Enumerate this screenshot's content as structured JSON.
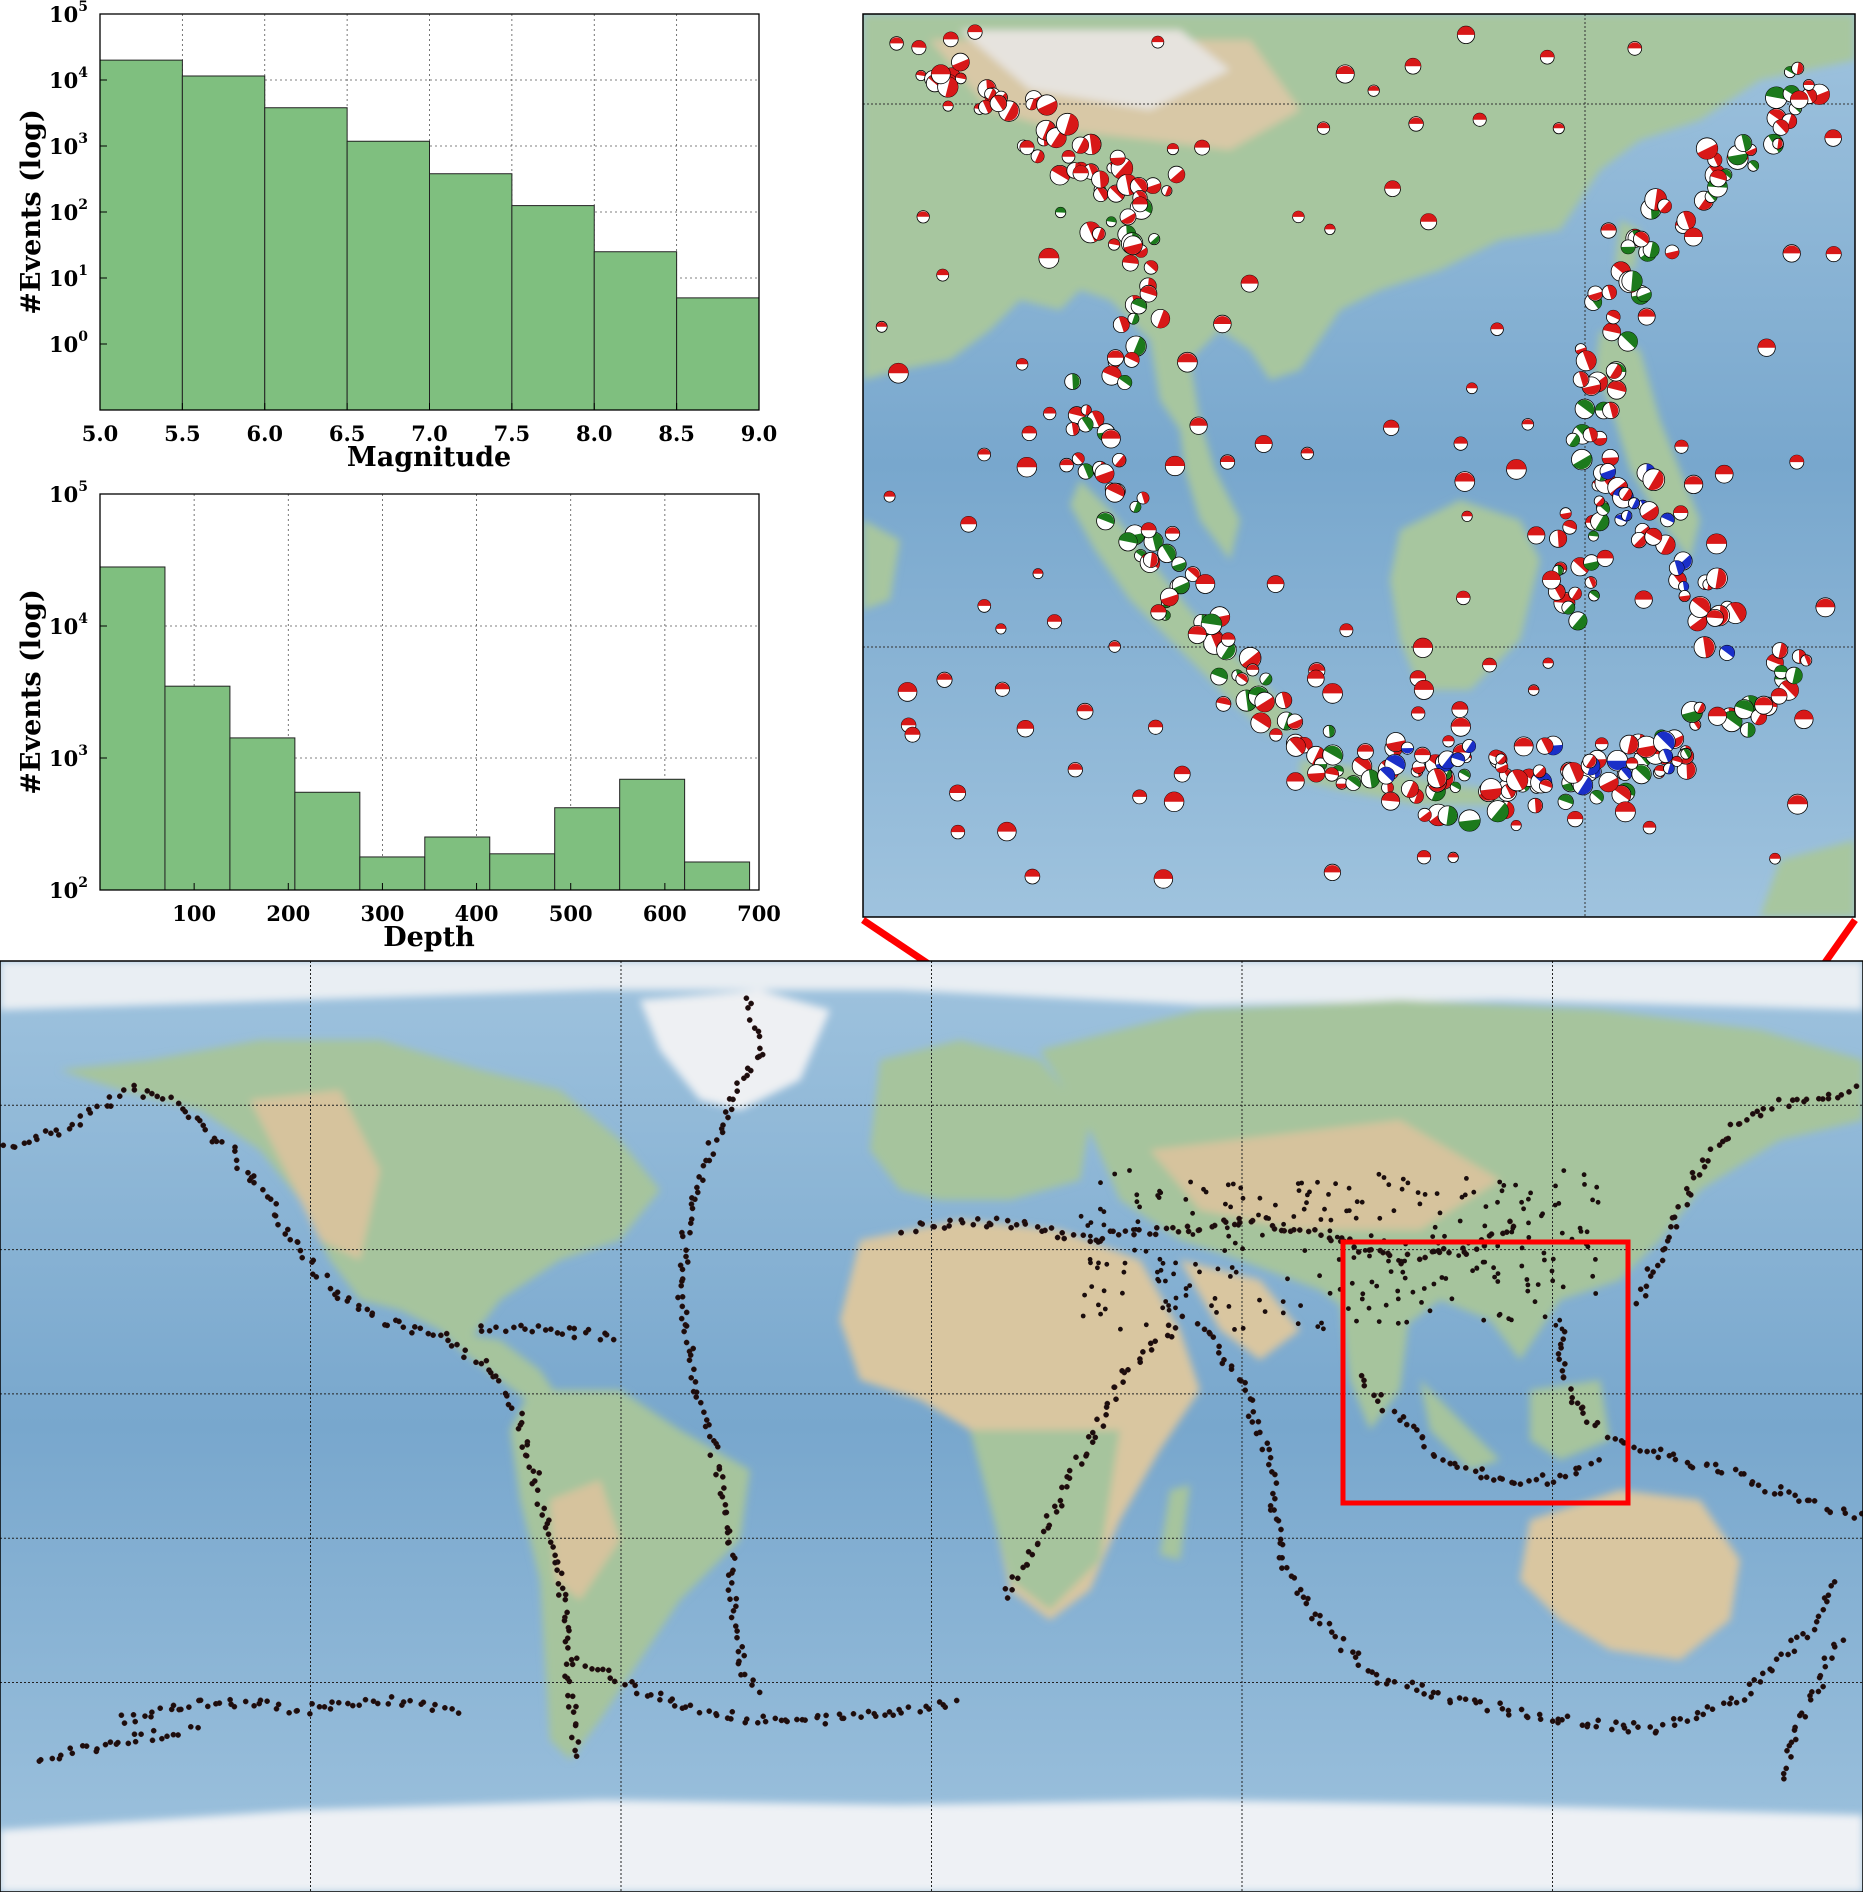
{
  "colors": {
    "bar_fill": "#7fbf7f",
    "bar_edge": "#222222",
    "ocean": "#7aa9cf",
    "ocean_light": "#bcd6ea",
    "land": "#9cc39a",
    "land_dry": "#d9c7a2",
    "ice": "#eef2f6",
    "event_dot": "#1a0d0d",
    "highlight": "#ff0000",
    "focal_red": "#d81818",
    "focal_green": "#1c7a1c",
    "focal_blue": "#1a2fc8"
  },
  "chart_data": [
    {
      "type": "bar",
      "xlabel": "Magnitude",
      "ylabel": "#Events (log)",
      "xlim": [
        5.0,
        9.0
      ],
      "ylim": [
        0.1,
        100000
      ],
      "log_y": true,
      "grid": true,
      "bin_edges": [
        5.0,
        5.5,
        6.0,
        6.5,
        7.0,
        7.5,
        8.0,
        8.5,
        9.0
      ],
      "values": [
        20000,
        11500,
        3800,
        1180,
        380,
        125,
        25,
        5
      ],
      "x_ticks": [
        "5.0",
        "5.5",
        "6.0",
        "6.5",
        "7.0",
        "7.5",
        "8.0",
        "8.5",
        "9.0"
      ],
      "x_tick_values": [
        5.0,
        5.5,
        6.0,
        6.5,
        7.0,
        7.5,
        8.0,
        8.5,
        9.0
      ],
      "y_ticks": [
        {
          "value": 1,
          "base": "10",
          "exp": "0"
        },
        {
          "value": 10,
          "base": "10",
          "exp": "1"
        },
        {
          "value": 100,
          "base": "10",
          "exp": "2"
        },
        {
          "value": 1000,
          "base": "10",
          "exp": "3"
        },
        {
          "value": 10000,
          "base": "10",
          "exp": "4"
        },
        {
          "value": 100000,
          "base": "10",
          "exp": "5"
        }
      ]
    },
    {
      "type": "bar",
      "xlabel": "Depth",
      "ylabel": "#Events (log)",
      "xlim": [
        0,
        700
      ],
      "ylim": [
        100,
        100000
      ],
      "log_y": true,
      "grid": true,
      "bin_edges": [
        0,
        69,
        138,
        207,
        276,
        345,
        414,
        483,
        552,
        621,
        690
      ],
      "values": [
        28000,
        3500,
        1420,
        550,
        178,
        252,
        188,
        420,
        690,
        163
      ],
      "x_ticks": [
        "100",
        "200",
        "300",
        "400",
        "500",
        "600",
        "700"
      ],
      "x_tick_values": [
        100,
        200,
        300,
        400,
        500,
        600,
        700
      ],
      "y_ticks": [
        {
          "value": 100,
          "base": "10",
          "exp": "2"
        },
        {
          "value": 1000,
          "base": "10",
          "exp": "3"
        },
        {
          "value": 10000,
          "base": "10",
          "exp": "4"
        },
        {
          "value": 100000,
          "base": "10",
          "exp": "5"
        }
      ]
    }
  ],
  "world_map": {
    "lon_range": [
      -180,
      180
    ],
    "lat_range": [
      -90,
      90
    ],
    "highlight_box_lon": [
      80,
      135
    ],
    "highlight_box_lat": [
      -10,
      40
    ]
  }
}
